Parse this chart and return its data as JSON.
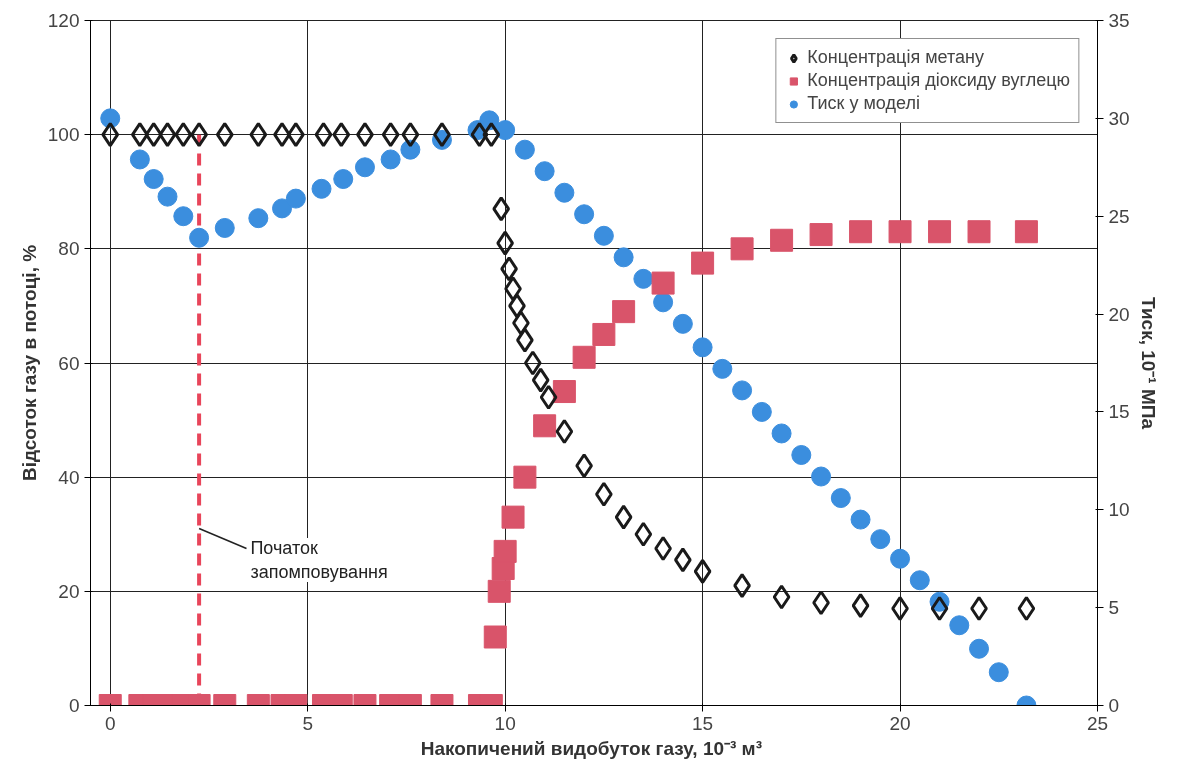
{
  "chart_data": {
    "type": "scatter",
    "xlabel": "Накопичений видобуток газу,  10⁻³ м³",
    "ylabel": "Відсоток газу в потоці, %",
    "y2label": "Тиск, 10⁻¹ МПа",
    "xlim": [
      -0.5,
      25
    ],
    "xticks": [
      0,
      5,
      10,
      15,
      20,
      25
    ],
    "ylim": [
      0,
      120
    ],
    "yticks": [
      0,
      20,
      40,
      60,
      80,
      100,
      120
    ],
    "y2lim": [
      0,
      35
    ],
    "y2ticks": [
      0,
      5,
      10,
      15,
      20,
      25,
      30,
      35
    ],
    "grid": true,
    "legend": "top right",
    "series": [
      {
        "name": "Концентрація метану",
        "color": "#1a1a1a",
        "marker": "diamond",
        "x": [
          0,
          0.75,
          1.1,
          1.45,
          1.85,
          2.25,
          2.9,
          3.75,
          4.35,
          4.7,
          5.4,
          5.85,
          6.45,
          7.1,
          7.6,
          8.4,
          9.35,
          9.65,
          9.9,
          10,
          10.1,
          10.2,
          10.3,
          10.4,
          10.5,
          10.7,
          10.9,
          11.1,
          11.5,
          12,
          12.5,
          13,
          13.5,
          14,
          14.5,
          15,
          16,
          17,
          18,
          19,
          20,
          21,
          22,
          23.2
        ],
        "values": [
          100,
          100,
          100,
          100,
          100,
          100,
          100,
          100,
          100,
          100,
          100,
          100,
          100,
          100,
          100,
          100,
          100,
          100,
          87,
          81,
          76.5,
          73,
          70,
          67,
          64,
          60,
          57,
          54,
          48,
          42,
          37,
          33,
          30,
          27.5,
          25.5,
          23.5,
          21,
          19,
          18,
          17.5,
          17,
          17,
          17,
          17
        ]
      },
      {
        "name": "Концентрація діоксиду вуглецю",
        "color": "#d9546a",
        "marker": "square",
        "x": [
          0,
          0.75,
          1.1,
          1.45,
          1.85,
          2.25,
          2.9,
          3.75,
          4.35,
          4.7,
          5.4,
          5.85,
          6.45,
          7.1,
          7.6,
          8.4,
          9.35,
          9.65,
          9.75,
          9.85,
          9.95,
          10,
          10.2,
          10.5,
          11,
          11.5,
          12,
          12.5,
          13,
          14,
          15,
          16,
          17,
          18,
          19,
          20,
          21,
          22,
          23.2
        ],
        "values": [
          0,
          0,
          0,
          0,
          0,
          0,
          0,
          0,
          0,
          0,
          0,
          0,
          0,
          0,
          0,
          0,
          0,
          0,
          12,
          20,
          24,
          27,
          33,
          40,
          49,
          55,
          61,
          65,
          69,
          74,
          77.5,
          80,
          81.5,
          82.5,
          83,
          83,
          83,
          83,
          83
        ]
      },
      {
        "name": "Тиск у моделі",
        "color": "#3b8ede",
        "marker": "circle",
        "axis": "y2",
        "x": [
          0,
          0.75,
          1.1,
          1.45,
          1.85,
          2.25,
          2.9,
          3.75,
          4.35,
          4.7,
          5.35,
          5.9,
          6.45,
          7.1,
          7.6,
          8.4,
          9.3,
          9.6,
          10,
          10.5,
          11,
          11.5,
          12,
          12.5,
          13,
          13.5,
          14,
          14.5,
          15,
          15.5,
          16,
          16.5,
          17,
          17.5,
          18,
          18.5,
          19,
          19.5,
          20,
          20.5,
          21,
          21.5,
          22,
          22.5,
          23.2
        ],
        "values": [
          30,
          27.9,
          26.9,
          26,
          25,
          23.9,
          24.4,
          24.9,
          25.4,
          25.9,
          26.4,
          26.9,
          27.5,
          27.9,
          28.4,
          28.9,
          29.4,
          29.9,
          29.4,
          28.4,
          27.3,
          26.2,
          25.1,
          24,
          22.9,
          21.8,
          20.6,
          19.5,
          18.3,
          17.2,
          16.1,
          15,
          13.9,
          12.8,
          11.7,
          10.6,
          9.5,
          8.5,
          7.5,
          6.4,
          5.3,
          4.1,
          2.9,
          1.7,
          0
        ]
      },
      {
        "type": "line",
        "color": "#e8455a",
        "line_style": "dashed",
        "x": [
          2.25,
          2.25
        ],
        "values": [
          0,
          100
        ]
      }
    ],
    "annotations": [
      {
        "text": "Початок запомповування",
        "x": 2.25,
        "y": 31
      }
    ]
  }
}
